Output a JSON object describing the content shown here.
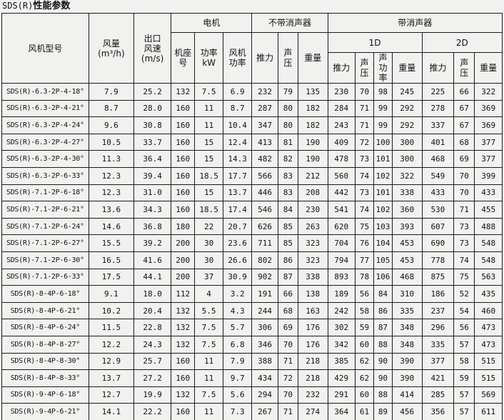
{
  "title": {
    "prefix": "SDS(R)",
    "main": "性能参数"
  },
  "table": {
    "header": {
      "fan_model": "风机型号",
      "air_volume": "风量\n(m³/h)",
      "outlet_speed": "出口\n风速\n(m/s)",
      "motor_group": "电机",
      "frame_no": "机座\n号",
      "power_kw": "功率\nkW",
      "fan_power": "风机\n功率",
      "no_silencer_group": "不带消声器",
      "with_silencer_group": "带消声器",
      "d1": "1D",
      "d2": "2D",
      "thrust": "推力",
      "sound_pressure": "声\n压",
      "sound_power": "声\n功\n率",
      "weight": "重量"
    },
    "rows": [
      [
        "SDS(R)-6.3-2P-4-18°",
        "7.9",
        "25.2",
        "132",
        "7.5",
        "6.9",
        "232",
        "79",
        "135",
        "230",
        "70",
        "98",
        "245",
        "225",
        "66",
        "322"
      ],
      [
        "SDS(R)-6.3-2P-4-21°",
        "8.7",
        "28.0",
        "160",
        "11",
        "8.7",
        "287",
        "80",
        "182",
        "284",
        "71",
        "99",
        "292",
        "278",
        "67",
        "369"
      ],
      [
        "SDS(R)-6.3-2P-4-24°",
        "9.6",
        "30.8",
        "160",
        "11",
        "10.4",
        "347",
        "80",
        "182",
        "243",
        "71",
        "99",
        "292",
        "337",
        "67",
        "369"
      ],
      [
        "SDS(R)-6.3-2P-4-27°",
        "10.5",
        "33.7",
        "160",
        "15",
        "12.4",
        "413",
        "81",
        "190",
        "409",
        "72",
        "100",
        "300",
        "401",
        "68",
        "377"
      ],
      [
        "SDS(R)-6.3-2P-4-30°",
        "11.3",
        "36.4",
        "160",
        "15",
        "14.3",
        "482",
        "82",
        "190",
        "478",
        "73",
        "101",
        "300",
        "468",
        "69",
        "377"
      ],
      [
        "SDS(R)-6.3-2P-6-33°",
        "12.3",
        "39.4",
        "160",
        "18.5",
        "17.7",
        "566",
        "83",
        "212",
        "560",
        "74",
        "102",
        "322",
        "549",
        "70",
        "399"
      ],
      [
        "SDS(R)-7.1-2P-6-18°",
        "12.3",
        "31.0",
        "160",
        "15",
        "13.7",
        "446",
        "83",
        "208",
        "442",
        "73",
        "101",
        "338",
        "433",
        "70",
        "433"
      ],
      [
        "SDS(R)-7.1-2P-6-21°",
        "13.6",
        "34.3",
        "160",
        "18.5",
        "17.4",
        "546",
        "84",
        "230",
        "541",
        "74",
        "102",
        "360",
        "530",
        "71",
        "455"
      ],
      [
        "SDS(R)-7.1-2P-6-24°",
        "14.6",
        "36.8",
        "180",
        "22",
        "20.7",
        "626",
        "85",
        "263",
        "620",
        "75",
        "103",
        "393",
        "607",
        "73",
        "488"
      ],
      [
        "SDS(R)-7.1-2P-6-27°",
        "15.5",
        "39.2",
        "200",
        "30",
        "23.6",
        "711",
        "85",
        "323",
        "704",
        "76",
        "104",
        "453",
        "690",
        "73",
        "548"
      ],
      [
        "SDS(R)-7.1-2P-6-30°",
        "16.5",
        "41.6",
        "200",
        "30",
        "26.6",
        "802",
        "86",
        "323",
        "794",
        "77",
        "105",
        "453",
        "778",
        "74",
        "548"
      ],
      [
        "SDS(R)-7.1-2P-6-33°",
        "17.5",
        "44.1",
        "200",
        "37",
        "30.9",
        "902",
        "87",
        "338",
        "893",
        "78",
        "106",
        "468",
        "875",
        "75",
        "563"
      ],
      [
        "SDS(R)-8-4P-6-18°",
        "9.1",
        "18.0",
        "112",
        "4",
        "3.2",
        "191",
        "66",
        "138",
        "189",
        "56",
        "84",
        "310",
        "186",
        "52",
        "435"
      ],
      [
        "SDS(R)-8-4P-6-21°",
        "10.2",
        "20.4",
        "132",
        "5.5",
        "4.3",
        "244",
        "68",
        "163",
        "242",
        "58",
        "86",
        "335",
        "237",
        "54",
        "460"
      ],
      [
        "SDS(R)-8-4P-6-24°",
        "11.5",
        "22.8",
        "132",
        "7.5",
        "5.7",
        "306",
        "69",
        "176",
        "302",
        "59",
        "87",
        "348",
        "296",
        "56",
        "473"
      ],
      [
        "SDS(R)-8-4P-8-27°",
        "12.2",
        "24.3",
        "132",
        "7.5",
        "6.8",
        "346",
        "70",
        "176",
        "342",
        "60",
        "88",
        "348",
        "335",
        "57",
        "473"
      ],
      [
        "SDS(R)-8-4P-8-30°",
        "12.9",
        "25.7",
        "160",
        "11",
        "7.9",
        "388",
        "71",
        "218",
        "385",
        "62",
        "90",
        "390",
        "377",
        "58",
        "515"
      ],
      [
        "SDS(R)-8-4P-8-33°",
        "13.7",
        "27.2",
        "160",
        "11",
        "9.7",
        "434",
        "72",
        "218",
        "429",
        "62",
        "90",
        "390",
        "421",
        "59",
        "515"
      ],
      [
        "SDS(R)-9-4P-6-18°",
        "12.7",
        "19.9",
        "132",
        "7.5",
        "5.6",
        "294",
        "70",
        "232",
        "291",
        "60",
        "88",
        "414",
        "285",
        "57",
        "569"
      ],
      [
        "SDS(R)-9-4P-6-21°",
        "14.1",
        "22.2",
        "160",
        "11",
        "7.3",
        "267",
        "71",
        "274",
        "364",
        "61",
        "89",
        "456",
        "356",
        "57",
        "611"
      ]
    ]
  }
}
